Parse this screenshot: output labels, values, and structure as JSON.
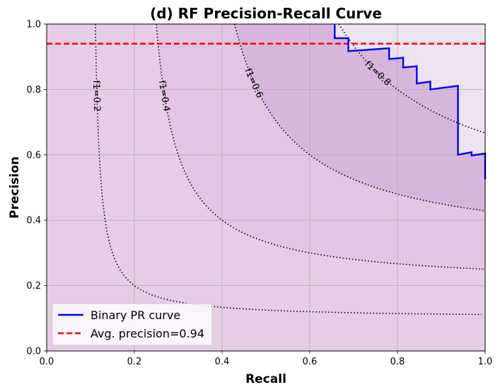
{
  "chart_data": {
    "type": "line",
    "title": "(d) RF Precision-Recall Curve",
    "xlabel": "Recall",
    "ylabel": "Precision",
    "xlim": [
      0.0,
      1.0
    ],
    "ylim": [
      0.0,
      1.0
    ],
    "x_ticks": [
      "0.0",
      "0.2",
      "0.4",
      "0.6",
      "0.8",
      "1.0"
    ],
    "y_ticks": [
      "0.0",
      "0.2",
      "0.4",
      "0.6",
      "0.8",
      "1.0"
    ],
    "grid": true,
    "legend_position": "lower-left",
    "series": [
      {
        "name": "Binary PR curve",
        "style": "solid",
        "color": "#0000ff",
        "recall": [
          0.657,
          0.657,
          0.688,
          0.688,
          0.781,
          0.781,
          0.813,
          0.813,
          0.844,
          0.844,
          0.875,
          0.875,
          0.938,
          0.938,
          0.969,
          0.969,
          1.0,
          1.0
        ],
        "precision": [
          1.0,
          0.957,
          0.957,
          0.917,
          0.926,
          0.893,
          0.897,
          0.867,
          0.871,
          0.818,
          0.824,
          0.8,
          0.811,
          0.6,
          0.608,
          0.598,
          0.604,
          0.525
        ]
      },
      {
        "name": "Avg. precision=0.94",
        "style": "dashed",
        "color": "#ff0000",
        "value": 0.94
      }
    ],
    "iso_f1_curves": [
      {
        "f1": 0.2,
        "label": "f1=0.2"
      },
      {
        "f1": 0.4,
        "label": "f1=0.4"
      },
      {
        "f1": 0.6,
        "label": "f1=0.6"
      },
      {
        "f1": 0.8,
        "label": "f1=0.8"
      }
    ],
    "colors": {
      "background_fill": "#e6cde6",
      "inner_fill": "#d7b6dc",
      "upper_fill": "#ede3f1",
      "grid": "#b0b0b0"
    }
  }
}
